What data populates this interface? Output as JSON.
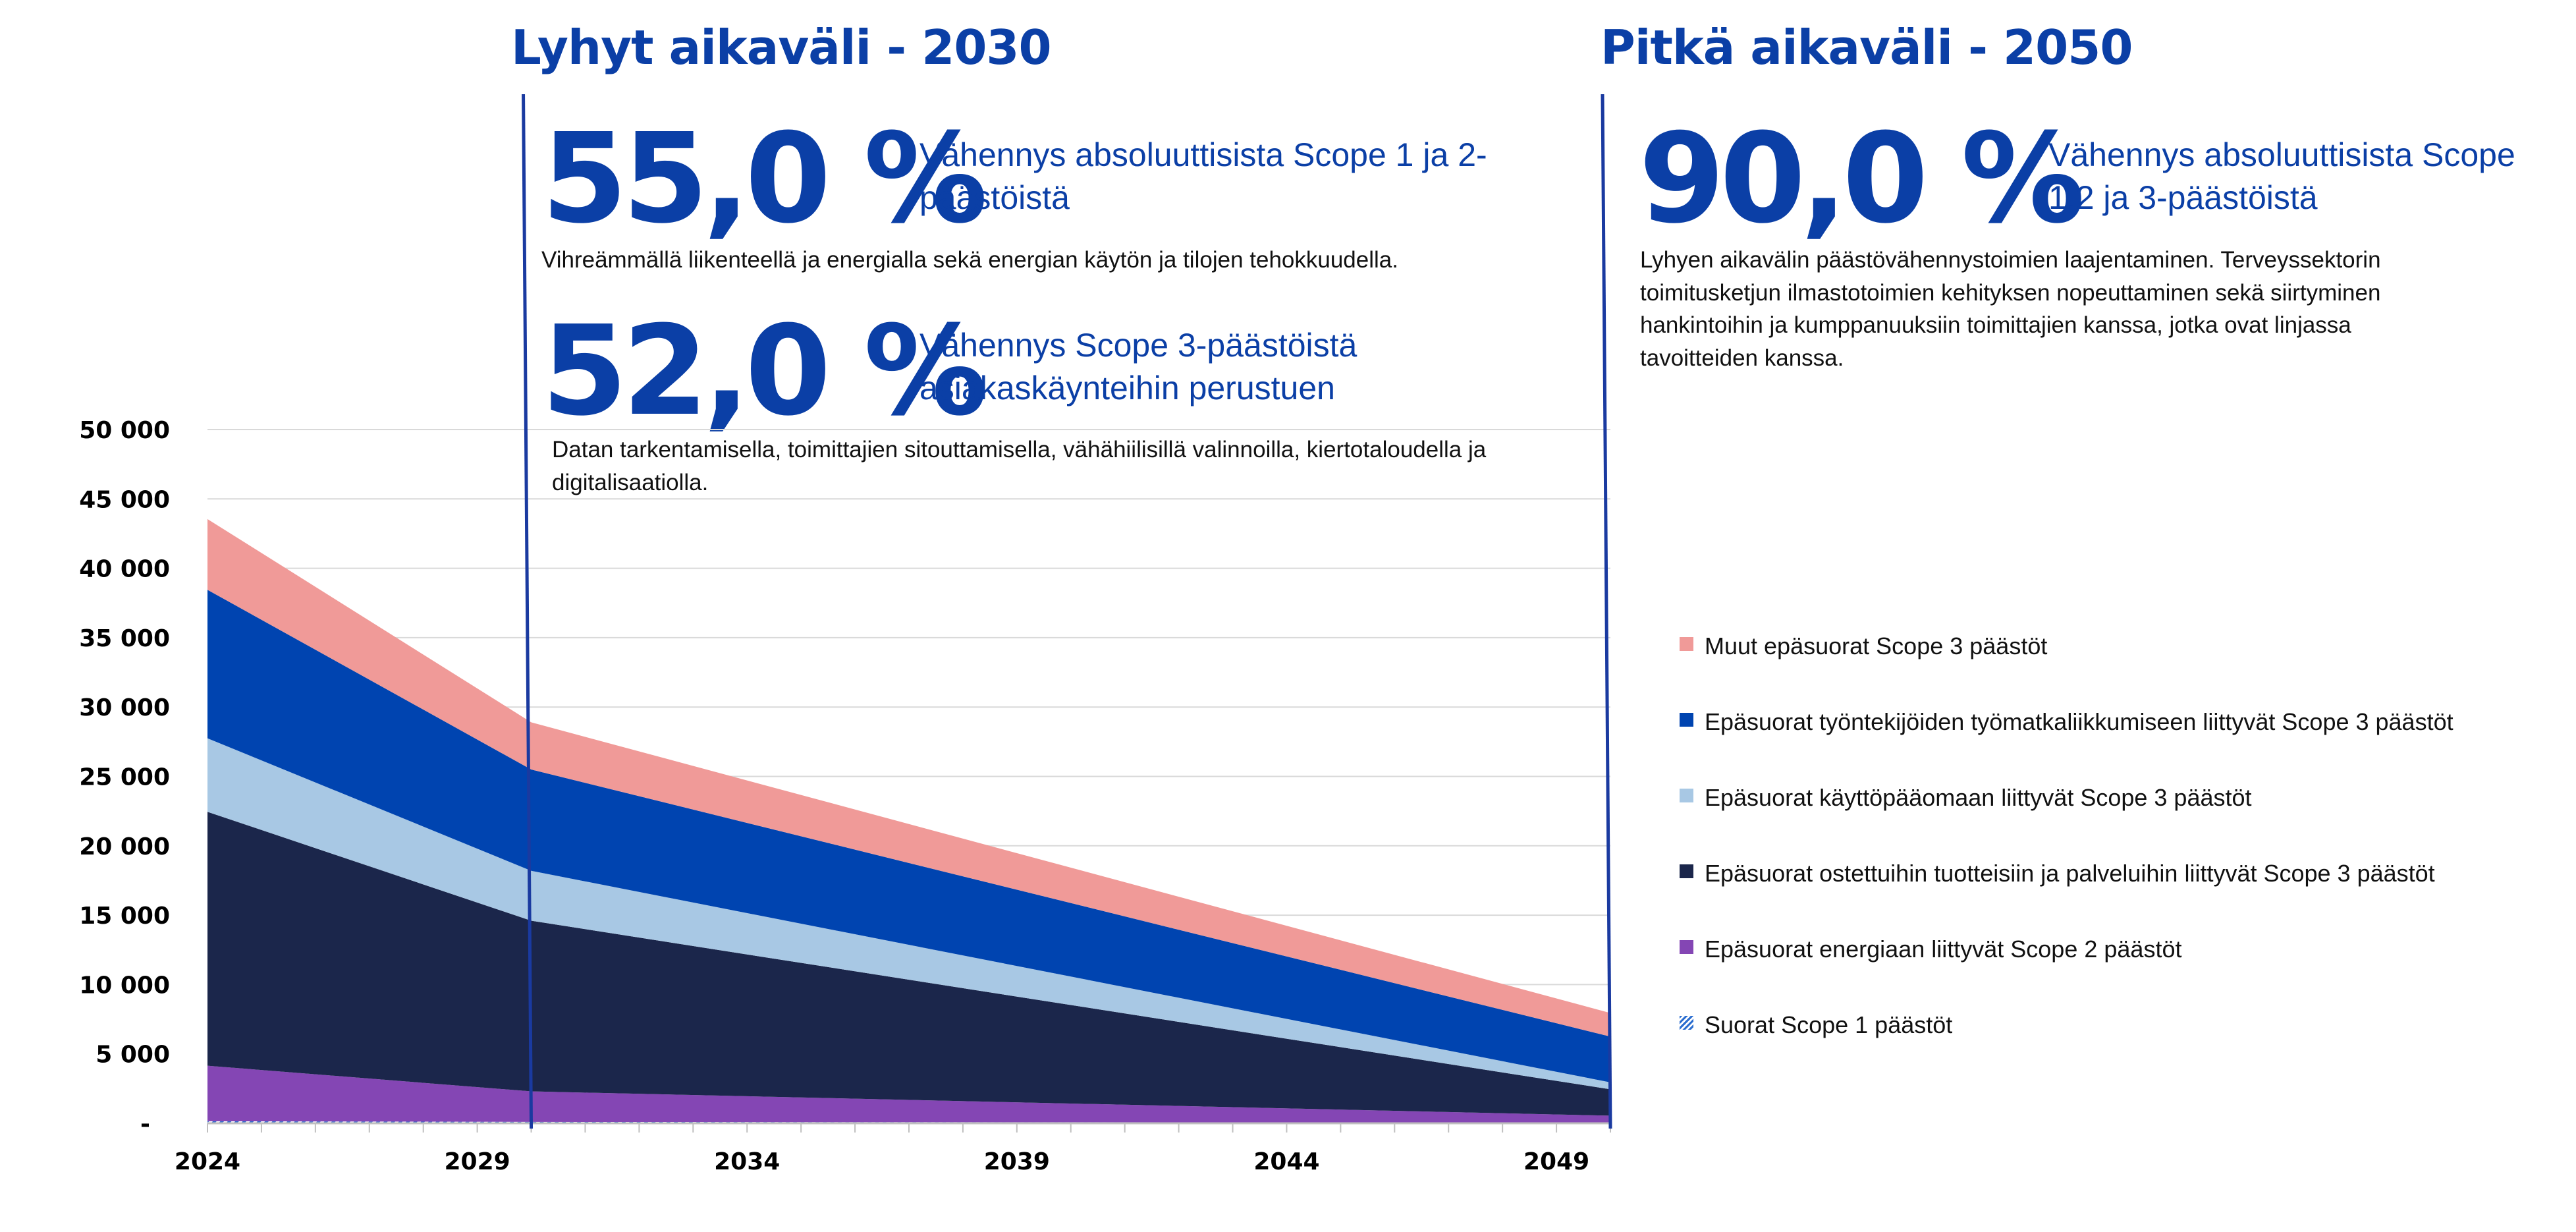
{
  "short_term": {
    "title": "Lyhyt aikaväli -  2030",
    "scope12_pct": "55,0 %",
    "scope12_label": "Vähennys absoluuttisista Scope 1 ja 2-päästöistä",
    "scope12_desc": "Vihreämmällä liikenteellä ja energialla sekä energian käytön ja tilojen tehokkuudella.",
    "scope3_pct": "52,0 %",
    "scope3_label": "Vähennys Scope 3-päästöistä asiakaskäynteihin perustuen",
    "scope3_desc": "Datan tarkentamisella, toimittajien sitouttamisella, vähähiilisillä valinnoilla,  kiertotaloudella ja digitalisaatiolla."
  },
  "long_term": {
    "title": "Pitkä aikaväli - 2050",
    "pct": "90,0 %",
    "label": "Vähennys absoluuttisista Scope 1,2 ja 3-päästöistä",
    "desc": "Lyhyen aikavälin päästövähennystoimien laajentaminen. Terveyssektorin toimitusketjun ilmastotoimien kehityksen nopeuttaminen sekä siirtyminen hankintoihin ja kumppanuuksiin toimittajien kanssa, jotka ovat linjassa tavoitteiden kanssa."
  },
  "chart_data": {
    "type": "area",
    "stacked": true,
    "x": [
      2024,
      2030,
      2050
    ],
    "x_tick_labels": [
      "2024",
      "2029",
      "2034",
      "2039",
      "2044",
      "2049"
    ],
    "x_tick_values": [
      2024,
      2029,
      2034,
      2039,
      2044,
      2049
    ],
    "ylim": [
      0,
      50000
    ],
    "y_tick_values": [
      0,
      5000,
      10000,
      15000,
      20000,
      25000,
      30000,
      35000,
      40000,
      45000,
      50000
    ],
    "y_tick_labels": [
      "-",
      "5 000",
      "10 000",
      "15 000",
      "20 000",
      "25 000",
      "30 000",
      "35 000",
      "40 000",
      "45 000",
      "50 000"
    ],
    "grid": true,
    "markers": [
      2030,
      2050
    ],
    "legend_position": "right",
    "series": [
      {
        "name": "Suorat Scope 1 päästöt",
        "values": [
          150,
          100,
          50
        ],
        "color": "#2d6fd0",
        "pattern": "hatch"
      },
      {
        "name": "Epäsuorat energiaan liittyvät Scope 2 päästöt",
        "values": [
          4000,
          2200,
          500
        ],
        "color": "#8446b4"
      },
      {
        "name": "Epäsuorat ostettuihin tuotteisiin ja palveluihin liittyvät Scope 3 päästöt",
        "values": [
          18300,
          12300,
          1900
        ],
        "color": "#1b264b"
      },
      {
        "name": "Epäsuorat käyttöpääomaan liittyvät Scope 3 päästöt",
        "values": [
          5300,
          3600,
          500
        ],
        "color": "#a8c8e4"
      },
      {
        "name": "Epäsuorat työntekijöiden työmatkaliikkumiseen liittyvät Scope 3 päästöt",
        "values": [
          10700,
          7300,
          3300
        ],
        "color": "#0044b0"
      },
      {
        "name": "Muut epäsuorat Scope 3 päästöt",
        "values": [
          5100,
          3400,
          1700
        ],
        "color": "#f09a98"
      }
    ],
    "legend_order": [
      5,
      4,
      3,
      2,
      1,
      0
    ]
  }
}
